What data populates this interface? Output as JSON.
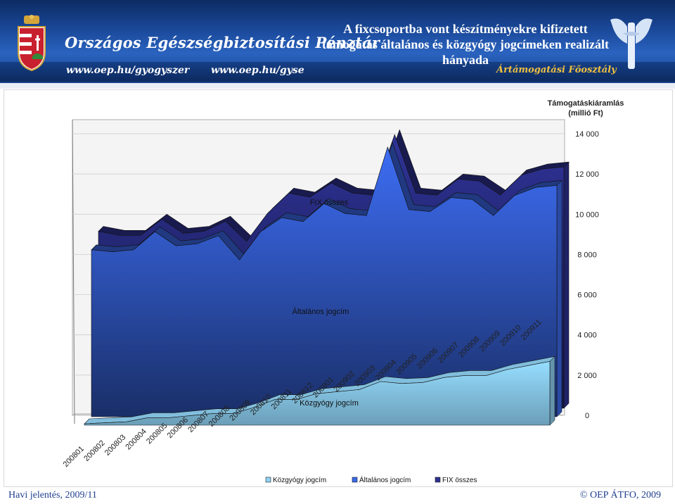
{
  "header": {
    "org_name": "Országos Egészségbiztosítási Pénztár",
    "url1": "www.oep.hu/gyogyszer",
    "url2": "www.oep.hu/gyse",
    "department": "Ártámogatási Főosztály",
    "title": "A fixcsoportba vont készítményekre kifizetett támogatás általános és közgyógy jogcímeken realizált hányada"
  },
  "footer": {
    "left": "Havi jelentés, 2009/11",
    "right": "© OEP ÁTFO, 2009"
  },
  "colors": {
    "kozgyogy": "#8fd3f5",
    "altalanos": "#3a68e8",
    "fix": "#2d3190"
  },
  "chart_data": {
    "type": "area",
    "subtype": "3d-stacked-depth",
    "ylabel": "Támogatáskiáramlás (millió Ft)",
    "ylim": [
      0,
      14000
    ],
    "yticks": [
      "0",
      "2 000",
      "4 000",
      "6 000",
      "8 000",
      "10 000",
      "12 000",
      "14 000"
    ],
    "yticks_values": [
      0,
      2000,
      4000,
      6000,
      8000,
      10000,
      12000,
      14000
    ],
    "categories": [
      "200801",
      "200802",
      "200803",
      "200804",
      "200805",
      "200806",
      "200807",
      "200808",
      "200809",
      "200810",
      "200811",
      "200812",
      "200901",
      "200902",
      "200903",
      "200904",
      "200905",
      "200906",
      "200907",
      "200908",
      "200909",
      "200910",
      "200911"
    ],
    "series": [
      {
        "name": "Közgyógy jogcím",
        "values": [
          0,
          50,
          100,
          300,
          300,
          400,
          500,
          500,
          800,
          1200,
          1200,
          1500,
          1600,
          1700,
          2100,
          2000,
          2050,
          2300,
          2400,
          2400,
          2700,
          2900,
          3100
        ]
      },
      {
        "name": "Általános jogcím",
        "values": [
          8300,
          8200,
          8300,
          9200,
          8500,
          8600,
          9000,
          7800,
          9200,
          9900,
          9700,
          10600,
          10100,
          10000,
          13400,
          10300,
          10200,
          10900,
          10800,
          10000,
          11000,
          11400,
          11500
        ]
      },
      {
        "name": "FIX összes",
        "values": [
          8800,
          8600,
          8600,
          9400,
          8700,
          8800,
          9300,
          8300,
          9700,
          10700,
          10500,
          11200,
          10700,
          10600,
          13600,
          10700,
          10600,
          11400,
          11300,
          10600,
          11600,
          11900,
          12000
        ]
      }
    ],
    "annotations": [
      "FIX összes",
      "Általános jogcím",
      "Közgyógy jogcím"
    ],
    "legend": [
      "Közgyógy jogcím",
      "Általános jogcím",
      "FIX összes"
    ],
    "legend_position": "bottom"
  }
}
